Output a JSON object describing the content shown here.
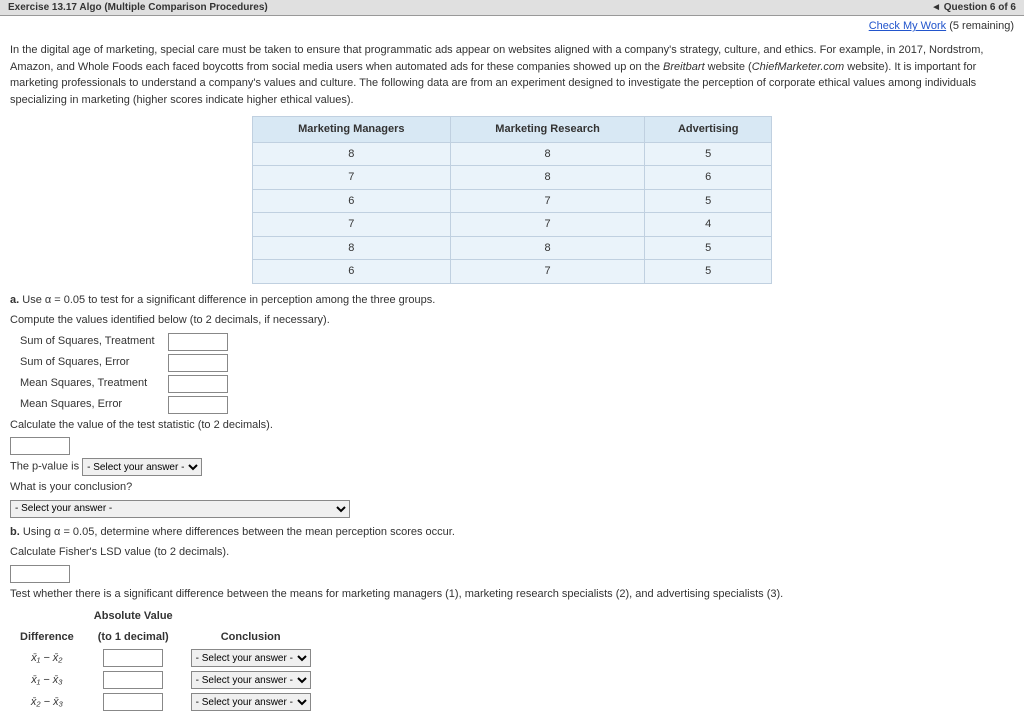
{
  "header": {
    "title": "Exercise 13.17 Algo (Multiple Comparison Procedures)",
    "question": "◄ Question 6 of 6"
  },
  "checkWork": {
    "link": "Check My Work",
    "remaining": "(5 remaining)"
  },
  "paragraph": "In the digital age of marketing, special care must be taken to ensure that programmatic ads appear on websites aligned with a company's strategy, culture, and ethics. For example, in 2017, Nordstrom, Amazon, and Whole Foods each faced boycotts from social media users when automated ads for these companies showed up on the ",
  "italic1": "Breitbart",
  "midtext": " website (",
  "italic2": "ChiefMarketer.com",
  "paragraph2": " website). It is important for marketing professionals to understand a company's values and culture. The following data are from an experiment designed to investigate the perception of corporate ethical values among individuals specializing in marketing (higher scores indicate higher ethical values).",
  "dataTable": {
    "columns": [
      "Marketing Managers",
      "Marketing Research",
      "Advertising"
    ],
    "rows": [
      [
        "8",
        "8",
        "5"
      ],
      [
        "7",
        "8",
        "6"
      ],
      [
        "6",
        "7",
        "5"
      ],
      [
        "7",
        "7",
        "4"
      ],
      [
        "8",
        "8",
        "5"
      ],
      [
        "6",
        "7",
        "5"
      ]
    ]
  },
  "partA": {
    "prefix": "a.",
    "text1": "Use α = 0.05 to test for a significant difference in perception among the three groups.",
    "text2": "Compute the values identified below (to 2 decimals, if necessary).",
    "rows": [
      {
        "label": "Sum of Squares, Treatment"
      },
      {
        "label": "Sum of Squares, Error"
      },
      {
        "label": "Mean Squares, Treatment"
      },
      {
        "label": "Mean Squares, Error"
      }
    ],
    "calcStat": "Calculate the value of the test statistic (to 2 decimals).",
    "pvalue": "The p-value is",
    "conclusion": "What is your conclusion?",
    "selectPlaceholder": "- Select your answer -"
  },
  "partB": {
    "prefix": "b.",
    "text": "Using α = 0.05, determine where differences between the mean perception scores occur.",
    "lsd": "Calculate Fisher's LSD value (to 2 decimals).",
    "testText": "Test whether there is a significant difference between the means for marketing managers (1), marketing research specialists (2), and advertising specialists (3).",
    "tableHeaders": {
      "diff": "Difference",
      "abs": "Absolute Value",
      "abs2": "(to 1 decimal)",
      "conclusion": "Conclusion"
    },
    "diffs": [
      "x̄₁ − x̄₂",
      "x̄₁ − x̄₃",
      "x̄₂ − x̄₃"
    ]
  }
}
